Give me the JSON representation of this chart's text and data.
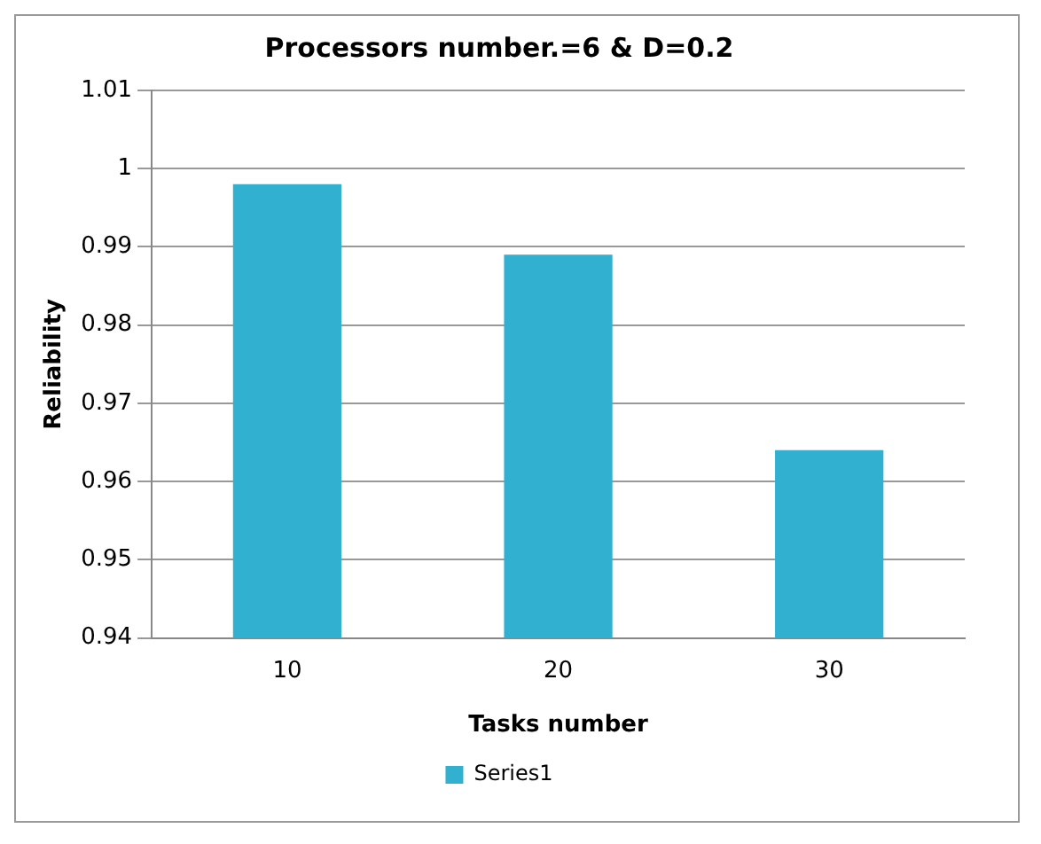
{
  "chart_data": {
    "type": "bar",
    "title": "Processors number.=6 & D=0.2",
    "xlabel": "Tasks number",
    "ylabel": "Reliability",
    "categories": [
      "10",
      "20",
      "30"
    ],
    "series": [
      {
        "name": "Series1",
        "color": "#31b0d0",
        "values": [
          0.998,
          0.989,
          0.964
        ]
      }
    ],
    "ylim": [
      0.94,
      1.01
    ],
    "yticks": [
      0.94,
      0.95,
      0.96,
      0.97,
      0.98,
      0.99,
      1,
      1.01
    ],
    "grid": "y",
    "legend": "bottom"
  }
}
